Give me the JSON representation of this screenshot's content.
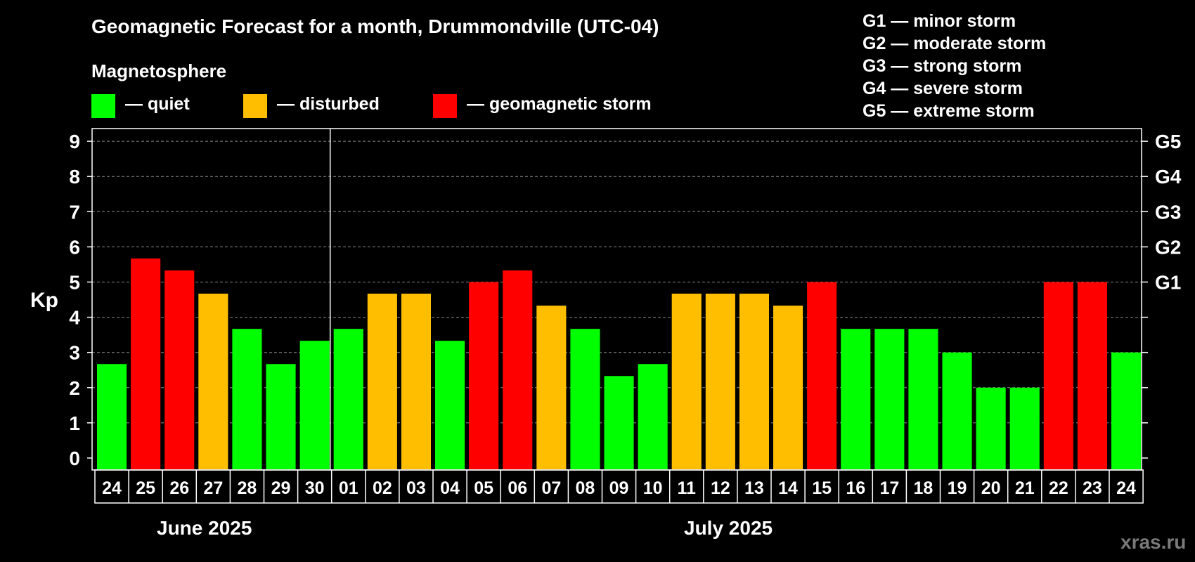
{
  "chart_data": {
    "type": "bar",
    "title": "Geomagnetic Forecast for a month, Drummondville (UTC-04)",
    "legend_heading": "Magnetosphere",
    "legend": [
      {
        "key": "quiet",
        "label": "— quiet",
        "color": "#00ff00"
      },
      {
        "key": "disturbed",
        "label": "— disturbed",
        "color": "#ffbf00"
      },
      {
        "key": "storm",
        "label": "— geomagnetic storm",
        "color": "#ff0000"
      }
    ],
    "storm_scale": [
      "G1 — minor storm",
      "G2 — moderate storm",
      "G3 — strong storm",
      "G4 — severe storm",
      "G5 — extreme storm"
    ],
    "ylabel": "Kp",
    "ylim": [
      0,
      9
    ],
    "y_ticks": [
      "0",
      "1",
      "2",
      "3",
      "4",
      "5",
      "6",
      "7",
      "8",
      "9"
    ],
    "right_ticks": [
      {
        "value": 5,
        "label": "G1"
      },
      {
        "value": 6,
        "label": "G2"
      },
      {
        "value": 7,
        "label": "G3"
      },
      {
        "value": 8,
        "label": "G4"
      },
      {
        "value": 9,
        "label": "G5"
      }
    ],
    "grid": "dashed horizontal",
    "categories": [
      "24",
      "25",
      "26",
      "27",
      "28",
      "29",
      "30",
      "01",
      "02",
      "03",
      "04",
      "05",
      "06",
      "07",
      "08",
      "09",
      "10",
      "11",
      "12",
      "13",
      "14",
      "15",
      "16",
      "17",
      "18",
      "19",
      "20",
      "21",
      "22",
      "23",
      "24"
    ],
    "values": [
      2.67,
      5.67,
      5.33,
      4.67,
      3.67,
      2.67,
      3.33,
      3.67,
      4.67,
      4.67,
      3.33,
      5,
      5.33,
      4.33,
      3.67,
      2.33,
      2.67,
      4.67,
      4.67,
      4.67,
      4.33,
      5,
      3.67,
      3.67,
      3.67,
      3,
      2,
      2,
      5,
      5,
      3
    ],
    "status": [
      "quiet",
      "storm",
      "storm",
      "disturbed",
      "quiet",
      "quiet",
      "quiet",
      "quiet",
      "disturbed",
      "disturbed",
      "quiet",
      "storm",
      "storm",
      "disturbed",
      "quiet",
      "quiet",
      "quiet",
      "disturbed",
      "disturbed",
      "disturbed",
      "disturbed",
      "storm",
      "quiet",
      "quiet",
      "quiet",
      "quiet",
      "quiet",
      "quiet",
      "storm",
      "storm",
      "quiet"
    ],
    "months": [
      {
        "label": "June 2025",
        "start_index": 0,
        "end_index": 6
      },
      {
        "label": "July 2025",
        "start_index": 7,
        "end_index": 30
      }
    ]
  },
  "watermark": "xras.ru"
}
